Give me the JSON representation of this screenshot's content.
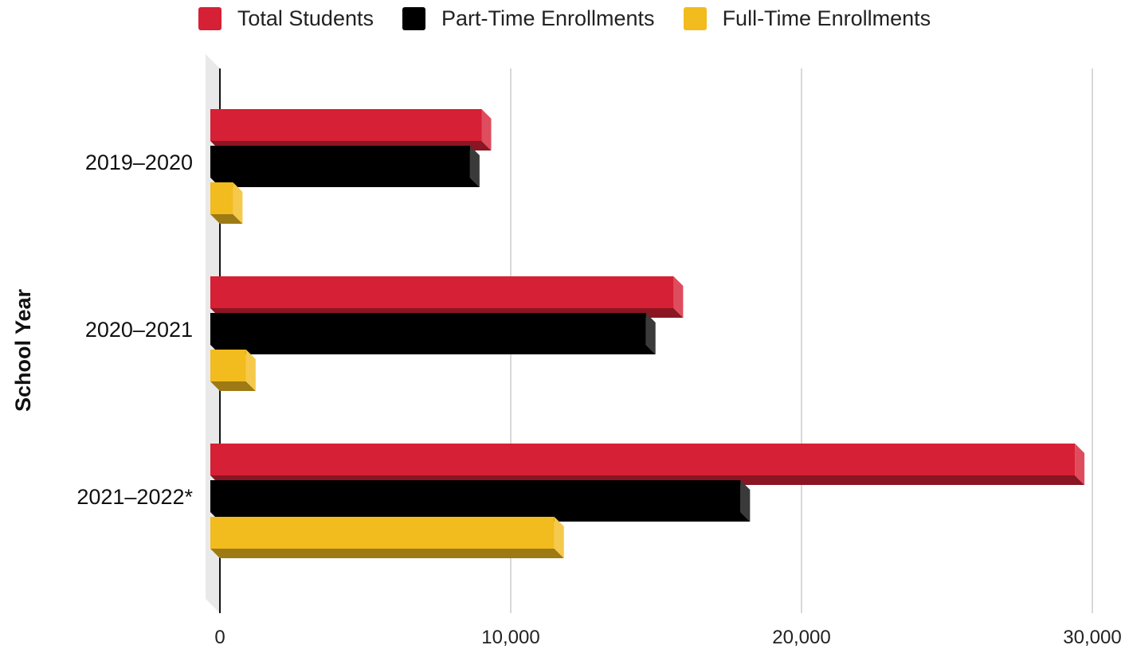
{
  "chart_data": {
    "type": "bar",
    "orientation": "horizontal",
    "style": "3d",
    "categories": [
      "2019–2020",
      "2020–2021",
      "2021–2022*"
    ],
    "series": [
      {
        "name": "Total Students",
        "color": "#D62035",
        "values": [
          9000,
          15600,
          29400
        ]
      },
      {
        "name": "Part-Time Enrollments",
        "color": "#000000",
        "values": [
          8600,
          14650,
          17900
        ]
      },
      {
        "name": "Full-Time Enrollments",
        "color": "#F2BB1E",
        "values": [
          450,
          900,
          11500
        ]
      }
    ],
    "ylabel": "School Year",
    "xlabel": "",
    "xlim": [
      0,
      30000
    ],
    "xticks": [
      "0",
      "10,000",
      "20,000",
      "30,000"
    ],
    "grid": true,
    "legend_position": "top-center"
  }
}
